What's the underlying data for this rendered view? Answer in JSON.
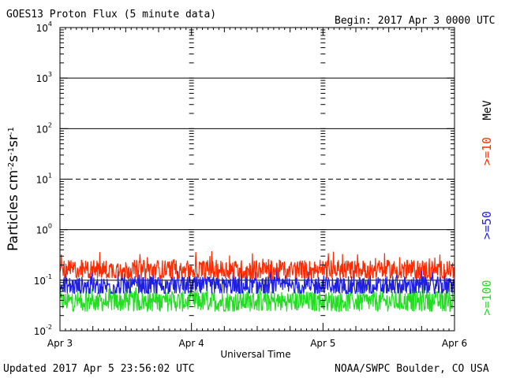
{
  "header": {
    "title": "GOES13 Proton Flux (5 minute data)",
    "begin": "Begin: 2017 Apr 3 0000 UTC"
  },
  "footer": {
    "updated": "Updated 2017 Apr  5 23:56:02 UTC",
    "credit": "NOAA/SWPC Boulder, CO USA"
  },
  "colors": {
    "ge10": "#ff2a00",
    "ge50": "#1f1fe0",
    "ge100": "#22dd22",
    "axis": "#000000"
  },
  "chart_data": {
    "type": "line",
    "xlabel": "Universal Time",
    "ylabel": "Particles cm-2s-1sr-1",
    "yscale": "log",
    "ylim": [
      0.01,
      10000
    ],
    "xlim": [
      "2017-04-03 00:00",
      "2017-04-06 00:00"
    ],
    "x_ticks": [
      "Apr 3",
      "Apr 4",
      "Apr 5",
      "Apr 6"
    ],
    "y_ticks": [
      {
        "base": "10",
        "exp": "4",
        "value": 10000
      },
      {
        "base": "10",
        "exp": "3",
        "value": 1000
      },
      {
        "base": "10",
        "exp": "2",
        "value": 100
      },
      {
        "base": "10",
        "exp": "1",
        "value": 10
      },
      {
        "base": "10",
        "exp": "0",
        "value": 1
      },
      {
        "base": "10",
        "exp": "-1",
        "value": 0.1
      },
      {
        "base": "10",
        "exp": "-2",
        "value": 0.01
      }
    ],
    "gridlines": [
      {
        "value": 1000,
        "style": "solid"
      },
      {
        "value": 100,
        "style": "solid"
      },
      {
        "value": 10,
        "style": "dashed"
      },
      {
        "value": 1,
        "style": "solid"
      },
      {
        "value": 0.1,
        "style": "solid"
      }
    ],
    "energy_unit": "MeV",
    "series": [
      {
        "name": ">=10",
        "color": "#ff2a00",
        "typical": 0.16,
        "min": 0.11,
        "max": 0.38
      },
      {
        "name": ">=50",
        "color": "#1f1fe0",
        "typical": 0.075,
        "min": 0.055,
        "max": 0.19
      },
      {
        "name": ">=100",
        "color": "#22dd22",
        "typical": 0.038,
        "min": 0.024,
        "max": 0.085
      }
    ]
  }
}
